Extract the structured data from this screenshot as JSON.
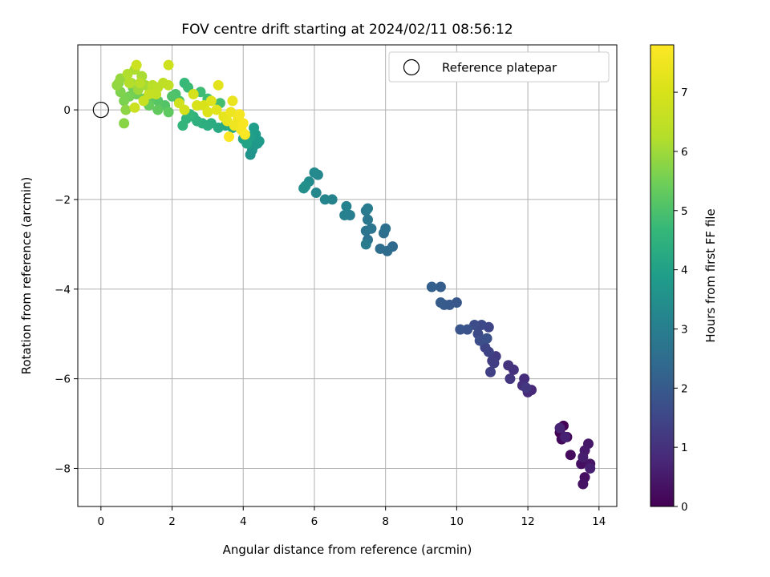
{
  "chart_data": {
    "type": "scatter",
    "title": "FOV centre drift starting at 2024/02/11 08:56:12",
    "xlabel": "Angular distance from reference (arcmin)",
    "ylabel": "Rotation from reference (arcmin)",
    "xlim": [
      -0.65,
      14.5
    ],
    "ylim": [
      -8.85,
      1.45
    ],
    "xticks": [
      0,
      2,
      4,
      6,
      8,
      10,
      12,
      14
    ],
    "yticks": [
      -8,
      -6,
      -4,
      -2,
      0
    ],
    "grid": true,
    "legend": {
      "placement": "top-right",
      "entries": [
        "Reference platepar"
      ]
    },
    "reference_point": {
      "x": 0,
      "y": 0,
      "label": "Reference platepar"
    },
    "colorbar": {
      "label": "Hours from first FF file",
      "colormap": "viridis",
      "range": [
        0,
        7.8
      ],
      "ticks": [
        0,
        1,
        2,
        3,
        4,
        5,
        6,
        7
      ]
    },
    "points": [
      {
        "x": 13.0,
        "y": -7.05,
        "c": 0.0
      },
      {
        "x": 12.9,
        "y": -7.2,
        "c": 0.05
      },
      {
        "x": 13.1,
        "y": -7.3,
        "c": 0.1
      },
      {
        "x": 12.95,
        "y": -7.35,
        "c": 0.15
      },
      {
        "x": 13.2,
        "y": -7.7,
        "c": 0.2
      },
      {
        "x": 13.5,
        "y": -7.9,
        "c": 0.25
      },
      {
        "x": 13.6,
        "y": -8.2,
        "c": 0.3
      },
      {
        "x": 13.55,
        "y": -8.35,
        "c": 0.35
      },
      {
        "x": 13.75,
        "y": -7.9,
        "c": 0.4
      },
      {
        "x": 13.7,
        "y": -7.45,
        "c": 0.45
      },
      {
        "x": 13.6,
        "y": -7.6,
        "c": 0.5
      },
      {
        "x": 13.55,
        "y": -7.75,
        "c": 0.55
      },
      {
        "x": 13.75,
        "y": -8.0,
        "c": 0.6
      },
      {
        "x": 13.05,
        "y": -7.3,
        "c": 0.65
      },
      {
        "x": 12.9,
        "y": -7.1,
        "c": 0.7
      },
      {
        "x": 12.1,
        "y": -6.25,
        "c": 0.8
      },
      {
        "x": 12.0,
        "y": -6.3,
        "c": 0.85
      },
      {
        "x": 11.9,
        "y": -6.0,
        "c": 0.9
      },
      {
        "x": 11.85,
        "y": -6.15,
        "c": 0.95
      },
      {
        "x": 11.6,
        "y": -5.8,
        "c": 1.0
      },
      {
        "x": 11.45,
        "y": -5.7,
        "c": 1.05
      },
      {
        "x": 11.5,
        "y": -6.0,
        "c": 1.1
      },
      {
        "x": 11.95,
        "y": -6.2,
        "c": 1.15
      },
      {
        "x": 11.1,
        "y": -5.5,
        "c": 1.2
      },
      {
        "x": 11.0,
        "y": -5.6,
        "c": 1.25
      },
      {
        "x": 11.05,
        "y": -5.65,
        "c": 1.3
      },
      {
        "x": 10.95,
        "y": -5.85,
        "c": 1.35
      },
      {
        "x": 10.9,
        "y": -5.4,
        "c": 1.4
      },
      {
        "x": 10.8,
        "y": -5.3,
        "c": 1.45
      },
      {
        "x": 10.9,
        "y": -4.85,
        "c": 1.5
      },
      {
        "x": 10.7,
        "y": -4.8,
        "c": 1.55
      },
      {
        "x": 10.6,
        "y": -5.0,
        "c": 1.6
      },
      {
        "x": 10.5,
        "y": -4.8,
        "c": 1.65
      },
      {
        "x": 10.65,
        "y": -5.15,
        "c": 1.7
      },
      {
        "x": 10.85,
        "y": -5.1,
        "c": 1.75
      },
      {
        "x": 10.3,
        "y": -4.9,
        "c": 1.8
      },
      {
        "x": 10.1,
        "y": -4.9,
        "c": 1.85
      },
      {
        "x": 10.0,
        "y": -4.3,
        "c": 1.9
      },
      {
        "x": 9.8,
        "y": -4.35,
        "c": 1.95
      },
      {
        "x": 9.65,
        "y": -4.35,
        "c": 2.0
      },
      {
        "x": 9.55,
        "y": -4.3,
        "c": 2.05
      },
      {
        "x": 9.55,
        "y": -3.95,
        "c": 2.1
      },
      {
        "x": 9.3,
        "y": -3.95,
        "c": 2.15
      },
      {
        "x": 8.2,
        "y": -3.05,
        "c": 2.4
      },
      {
        "x": 8.05,
        "y": -3.15,
        "c": 2.45
      },
      {
        "x": 7.85,
        "y": -3.1,
        "c": 2.5
      },
      {
        "x": 7.95,
        "y": -2.75,
        "c": 2.55
      },
      {
        "x": 8.0,
        "y": -2.65,
        "c": 2.6
      },
      {
        "x": 7.5,
        "y": -2.9,
        "c": 2.65
      },
      {
        "x": 7.45,
        "y": -2.7,
        "c": 2.7
      },
      {
        "x": 7.6,
        "y": -2.65,
        "c": 2.75
      },
      {
        "x": 7.5,
        "y": -2.45,
        "c": 2.8
      },
      {
        "x": 7.45,
        "y": -2.25,
        "c": 2.85
      },
      {
        "x": 7.5,
        "y": -2.2,
        "c": 2.9
      },
      {
        "x": 7.45,
        "y": -3.0,
        "c": 2.95
      },
      {
        "x": 7.0,
        "y": -2.35,
        "c": 3.0
      },
      {
        "x": 6.85,
        "y": -2.35,
        "c": 3.05
      },
      {
        "x": 6.9,
        "y": -2.15,
        "c": 3.1
      },
      {
        "x": 6.5,
        "y": -2.0,
        "c": 3.15
      },
      {
        "x": 6.3,
        "y": -2.0,
        "c": 3.2
      },
      {
        "x": 6.05,
        "y": -1.85,
        "c": 3.25
      },
      {
        "x": 6.1,
        "y": -1.45,
        "c": 3.3
      },
      {
        "x": 6.0,
        "y": -1.4,
        "c": 3.35
      },
      {
        "x": 5.85,
        "y": -1.6,
        "c": 3.4
      },
      {
        "x": 5.7,
        "y": -1.75,
        "c": 3.45
      },
      {
        "x": 5.75,
        "y": -1.7,
        "c": 3.5
      },
      {
        "x": 4.2,
        "y": -1.0,
        "c": 3.6
      },
      {
        "x": 4.25,
        "y": -0.9,
        "c": 3.65
      },
      {
        "x": 4.3,
        "y": -0.8,
        "c": 3.7
      },
      {
        "x": 4.4,
        "y": -0.75,
        "c": 3.75
      },
      {
        "x": 4.45,
        "y": -0.7,
        "c": 3.8
      },
      {
        "x": 4.35,
        "y": -0.55,
        "c": 3.85
      },
      {
        "x": 4.3,
        "y": -0.4,
        "c": 3.9
      },
      {
        "x": 4.2,
        "y": -0.6,
        "c": 3.95
      },
      {
        "x": 4.0,
        "y": -0.65,
        "c": 4.0
      },
      {
        "x": 4.1,
        "y": -0.75,
        "c": 4.05
      },
      {
        "x": 3.95,
        "y": -0.3,
        "c": 4.1
      },
      {
        "x": 3.7,
        "y": -0.4,
        "c": 4.15
      },
      {
        "x": 3.5,
        "y": -0.35,
        "c": 4.2
      },
      {
        "x": 3.3,
        "y": -0.4,
        "c": 4.25
      },
      {
        "x": 3.1,
        "y": -0.3,
        "c": 4.3
      },
      {
        "x": 3.0,
        "y": -0.35,
        "c": 4.35
      },
      {
        "x": 2.85,
        "y": -0.3,
        "c": 4.4
      },
      {
        "x": 2.7,
        "y": -0.25,
        "c": 4.45
      },
      {
        "x": 2.6,
        "y": -0.15,
        "c": 4.5
      },
      {
        "x": 2.4,
        "y": -0.2,
        "c": 4.55
      },
      {
        "x": 2.3,
        "y": -0.35,
        "c": 4.6
      },
      {
        "x": 2.5,
        "y": -0.1,
        "c": 4.65
      },
      {
        "x": 2.35,
        "y": 0.6,
        "c": 4.7
      },
      {
        "x": 2.45,
        "y": 0.5,
        "c": 4.75
      },
      {
        "x": 2.8,
        "y": 0.4,
        "c": 4.8
      },
      {
        "x": 3.0,
        "y": 0.25,
        "c": 4.85
      },
      {
        "x": 3.35,
        "y": 0.15,
        "c": 4.9
      },
      {
        "x": 2.2,
        "y": 0.2,
        "c": 4.95
      },
      {
        "x": 2.1,
        "y": 0.35,
        "c": 5.0
      },
      {
        "x": 2.0,
        "y": 0.3,
        "c": 5.05
      },
      {
        "x": 1.8,
        "y": 0.1,
        "c": 5.1
      },
      {
        "x": 1.6,
        "y": 0.2,
        "c": 5.15
      },
      {
        "x": 1.4,
        "y": 0.25,
        "c": 5.2
      },
      {
        "x": 1.9,
        "y": -0.05,
        "c": 5.25
      },
      {
        "x": 1.6,
        "y": 0.0,
        "c": 5.3
      },
      {
        "x": 1.35,
        "y": 0.1,
        "c": 5.35
      },
      {
        "x": 1.2,
        "y": 0.25,
        "c": 5.4
      },
      {
        "x": 1.0,
        "y": 0.35,
        "c": 5.45
      },
      {
        "x": 0.9,
        "y": 0.5,
        "c": 5.5
      },
      {
        "x": 0.8,
        "y": 0.3,
        "c": 5.55
      },
      {
        "x": 0.65,
        "y": 0.2,
        "c": 5.6
      },
      {
        "x": 0.55,
        "y": 0.4,
        "c": 5.65
      },
      {
        "x": 0.5,
        "y": 0.6,
        "c": 5.7
      },
      {
        "x": 0.65,
        "y": -0.3,
        "c": 5.75
      },
      {
        "x": 0.7,
        "y": 0.0,
        "c": 5.8
      },
      {
        "x": 0.45,
        "y": 0.55,
        "c": 5.85
      },
      {
        "x": 0.55,
        "y": 0.7,
        "c": 5.9
      },
      {
        "x": 0.85,
        "y": 0.6,
        "c": 5.95
      },
      {
        "x": 1.05,
        "y": 0.45,
        "c": 6.0
      },
      {
        "x": 1.25,
        "y": 0.55,
        "c": 6.05
      },
      {
        "x": 1.15,
        "y": 0.75,
        "c": 6.1
      },
      {
        "x": 0.95,
        "y": 0.9,
        "c": 6.15
      },
      {
        "x": 0.75,
        "y": 0.8,
        "c": 6.2
      },
      {
        "x": 0.8,
        "y": 0.6,
        "c": 6.25
      },
      {
        "x": 1.1,
        "y": 0.6,
        "c": 6.3
      },
      {
        "x": 1.45,
        "y": 0.55,
        "c": 6.35
      },
      {
        "x": 1.6,
        "y": 0.5,
        "c": 6.4
      },
      {
        "x": 1.75,
        "y": 0.6,
        "c": 6.45
      },
      {
        "x": 1.9,
        "y": 0.55,
        "c": 6.5
      },
      {
        "x": 1.55,
        "y": 0.35,
        "c": 6.55
      },
      {
        "x": 1.35,
        "y": 0.35,
        "c": 6.6
      },
      {
        "x": 1.2,
        "y": 0.2,
        "c": 6.65
      },
      {
        "x": 0.95,
        "y": 0.05,
        "c": 6.7
      },
      {
        "x": 1.0,
        "y": 1.0,
        "c": 6.75
      },
      {
        "x": 1.9,
        "y": 1.0,
        "c": 6.8
      },
      {
        "x": 2.2,
        "y": 0.15,
        "c": 6.85
      },
      {
        "x": 2.35,
        "y": 0.0,
        "c": 6.9
      },
      {
        "x": 2.6,
        "y": 0.35,
        "c": 6.95
      },
      {
        "x": 2.7,
        "y": 0.1,
        "c": 7.0
      },
      {
        "x": 2.9,
        "y": 0.1,
        "c": 7.05
      },
      {
        "x": 3.0,
        "y": -0.05,
        "c": 7.1
      },
      {
        "x": 3.1,
        "y": 0.2,
        "c": 7.15
      },
      {
        "x": 3.25,
        "y": 0.0,
        "c": 7.2
      },
      {
        "x": 3.3,
        "y": 0.55,
        "c": 7.25
      },
      {
        "x": 3.45,
        "y": -0.15,
        "c": 7.3
      },
      {
        "x": 3.55,
        "y": -0.25,
        "c": 7.35
      },
      {
        "x": 3.7,
        "y": 0.2,
        "c": 7.4
      },
      {
        "x": 3.65,
        "y": -0.05,
        "c": 7.45
      },
      {
        "x": 3.75,
        "y": -0.35,
        "c": 7.5
      },
      {
        "x": 3.85,
        "y": -0.2,
        "c": 7.55
      },
      {
        "x": 3.9,
        "y": -0.1,
        "c": 7.6
      },
      {
        "x": 3.95,
        "y": -0.45,
        "c": 7.65
      },
      {
        "x": 4.0,
        "y": -0.3,
        "c": 7.7
      },
      {
        "x": 4.05,
        "y": -0.55,
        "c": 7.75
      },
      {
        "x": 3.6,
        "y": -0.6,
        "c": 7.8
      }
    ]
  }
}
